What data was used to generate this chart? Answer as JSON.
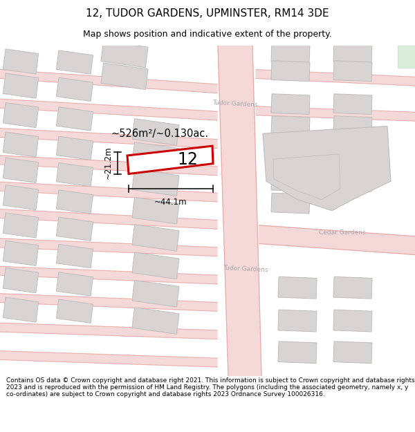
{
  "title": "12, TUDOR GARDENS, UPMINSTER, RM14 3DE",
  "subtitle": "Map shows position and indicative extent of the property.",
  "footer": "Contains OS data © Crown copyright and database right 2021. This information is subject to Crown copyright and database rights 2023 and is reproduced with the permission of HM Land Registry. The polygons (including the associated geometry, namely x, y co-ordinates) are subject to Crown copyright and database rights 2023 Ordnance Survey 100026316.",
  "map_bg": "#ffffff",
  "road_fill": "#f5d8d8",
  "road_line": "#e8a8a8",
  "building_fill": "#d8d4d4",
  "building_edge": "#c0bcbc",
  "plot_fill": "#ffffff",
  "plot_outline": "#cc0000",
  "green_fill": "#daeeda",
  "green_edge": "#c0dcc0",
  "plot_label": "12",
  "area_label": "~526m²/~0.130ac.",
  "width_label": "~44.1m",
  "height_label": "~21.2m",
  "street_label_top": "Tudor Gardens",
  "street_label_bot": "Tudor Gardens",
  "street_label_cedar": "Cedar Gardens",
  "title_fontsize": 11,
  "subtitle_fontsize": 9,
  "footer_fontsize": 6.5
}
